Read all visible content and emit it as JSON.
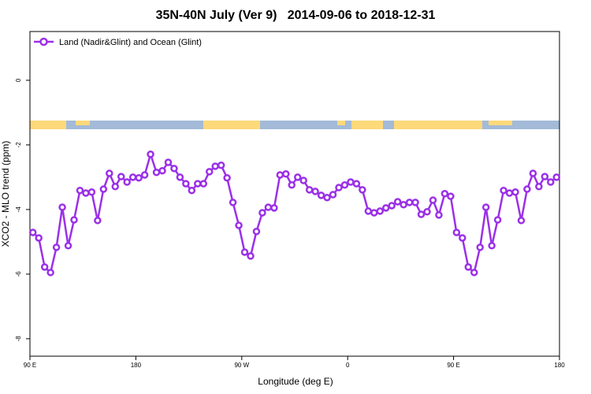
{
  "chart_data": {
    "type": "line",
    "title": "35N-40N July (Ver 9)   2014-09-06 to 2018-12-31",
    "xlabel": "Longitude (deg E)",
    "ylabel": "XCO2 - MLO trend (ppm)",
    "x": [
      92.5,
      97.5,
      102.5,
      107.5,
      112.5,
      117.5,
      122.5,
      127.5,
      132.5,
      137.5,
      142.5,
      147.5,
      152.5,
      157.5,
      162.5,
      167.5,
      172.5,
      177.5,
      182.5,
      187.5,
      192.5,
      197.5,
      202.5,
      207.5,
      212.5,
      217.5,
      222.5,
      227.5,
      232.5,
      237.5,
      242.5,
      247.5,
      252.5,
      257.5,
      262.5,
      267.5,
      272.5,
      277.5,
      282.5,
      287.5,
      292.5,
      297.5,
      302.5,
      307.5,
      312.5,
      317.5,
      322.5,
      327.5,
      332.5,
      337.5,
      342.5,
      347.5,
      352.5,
      357.5,
      362.5,
      367.5,
      372.5,
      377.5,
      382.5,
      387.5,
      392.5,
      397.5,
      402.5,
      407.5,
      412.5,
      417.5,
      422.5,
      427.5,
      432.5,
      437.5,
      442.5,
      447.5,
      452.5,
      457.5,
      462.5,
      467.5,
      472.5,
      477.5,
      482.5,
      487.5,
      492.5,
      497.5,
      502.5,
      507.5,
      512.5,
      517.5,
      522.5,
      527.5,
      532.5,
      537.5
    ],
    "series": [
      {
        "name": "Land (Nadir&Glint) and Ocean (Glint)",
        "color": "#9b30e8",
        "values": [
          -4.71,
          -4.88,
          -5.78,
          -5.95,
          -5.17,
          -3.93,
          -5.12,
          -4.32,
          -3.41,
          -3.49,
          -3.46,
          -4.34,
          -3.37,
          -2.88,
          -3.29,
          -2.98,
          -3.15,
          -3.0,
          -3.02,
          -2.93,
          -2.29,
          -2.85,
          -2.8,
          -2.54,
          -2.73,
          -3.0,
          -3.2,
          -3.41,
          -3.2,
          -3.2,
          -2.83,
          -2.66,
          -2.63,
          -3.02,
          -3.78,
          -4.49,
          -5.32,
          -5.44,
          -4.68,
          -4.1,
          -3.93,
          -3.95,
          -2.93,
          -2.9,
          -3.24,
          -3.0,
          -3.1,
          -3.39,
          -3.44,
          -3.56,
          -3.63,
          -3.54,
          -3.32,
          -3.24,
          -3.15,
          -3.2,
          -3.39,
          -4.05,
          -4.1,
          -4.05,
          -3.95,
          -3.88,
          -3.76,
          -3.85,
          -3.78,
          -3.78,
          -4.15,
          -4.07,
          -3.71,
          -4.17,
          -3.51,
          -3.59,
          -4.71,
          -4.88,
          -5.78,
          -5.95,
          -5.17,
          -3.93,
          -5.12,
          -4.32,
          -3.41,
          -3.49,
          -3.46,
          -4.34,
          -3.37,
          -2.88,
          -3.29,
          -2.98,
          -3.15,
          -3.0
        ]
      }
    ],
    "xlim": [
      90,
      540
    ],
    "xticks": [
      {
        "value": 90,
        "label": "90 E"
      },
      180,
      {
        "value": 270,
        "label": "90 W"
      },
      {
        "value": 360,
        "label": "0"
      },
      {
        "value": 450,
        "label": "90 E"
      },
      {
        "value": 540,
        "label": "180"
      }
    ],
    "ylim": [
      -8.54,
      1.51
    ],
    "yticks": [
      0,
      -2,
      -4,
      -6,
      -8
    ],
    "legend": "upper left"
  }
}
